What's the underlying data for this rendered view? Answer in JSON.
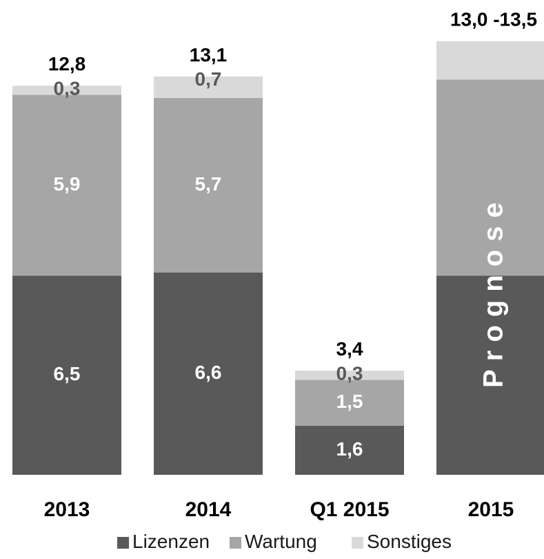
{
  "chart_data": {
    "type": "bar",
    "stacked": true,
    "categories": [
      "2013",
      "2014",
      "Q1 2015",
      "2015"
    ],
    "series": [
      {
        "name": "Lizenzen",
        "values": [
          6.5,
          6.6,
          1.6,
          null
        ],
        "labels": [
          "6,5",
          "6,6",
          "1,6",
          ""
        ],
        "color": "#595959"
      },
      {
        "name": "Wartung",
        "values": [
          5.9,
          5.7,
          1.5,
          null
        ],
        "labels": [
          "5,9",
          "5,7",
          "1,5",
          ""
        ],
        "color": "#a6a6a6"
      },
      {
        "name": "Sonstiges",
        "values": [
          0.3,
          0.7,
          0.3,
          null
        ],
        "labels": [
          "0,3",
          "0,7",
          "0,3",
          ""
        ],
        "color": "#d9d9d9"
      }
    ],
    "totals": [
      "12,8",
      "13,1",
      "3,4",
      "13,0 -13,5"
    ],
    "overlay_text": "Prognose",
    "legend_position": "bottom",
    "gridlines": false,
    "forecast_column": "2015",
    "label_colors": {
      "Lizenzen": "#ffffff",
      "Wartung": "#ffffff",
      "Sonstiges": "#595959"
    }
  }
}
